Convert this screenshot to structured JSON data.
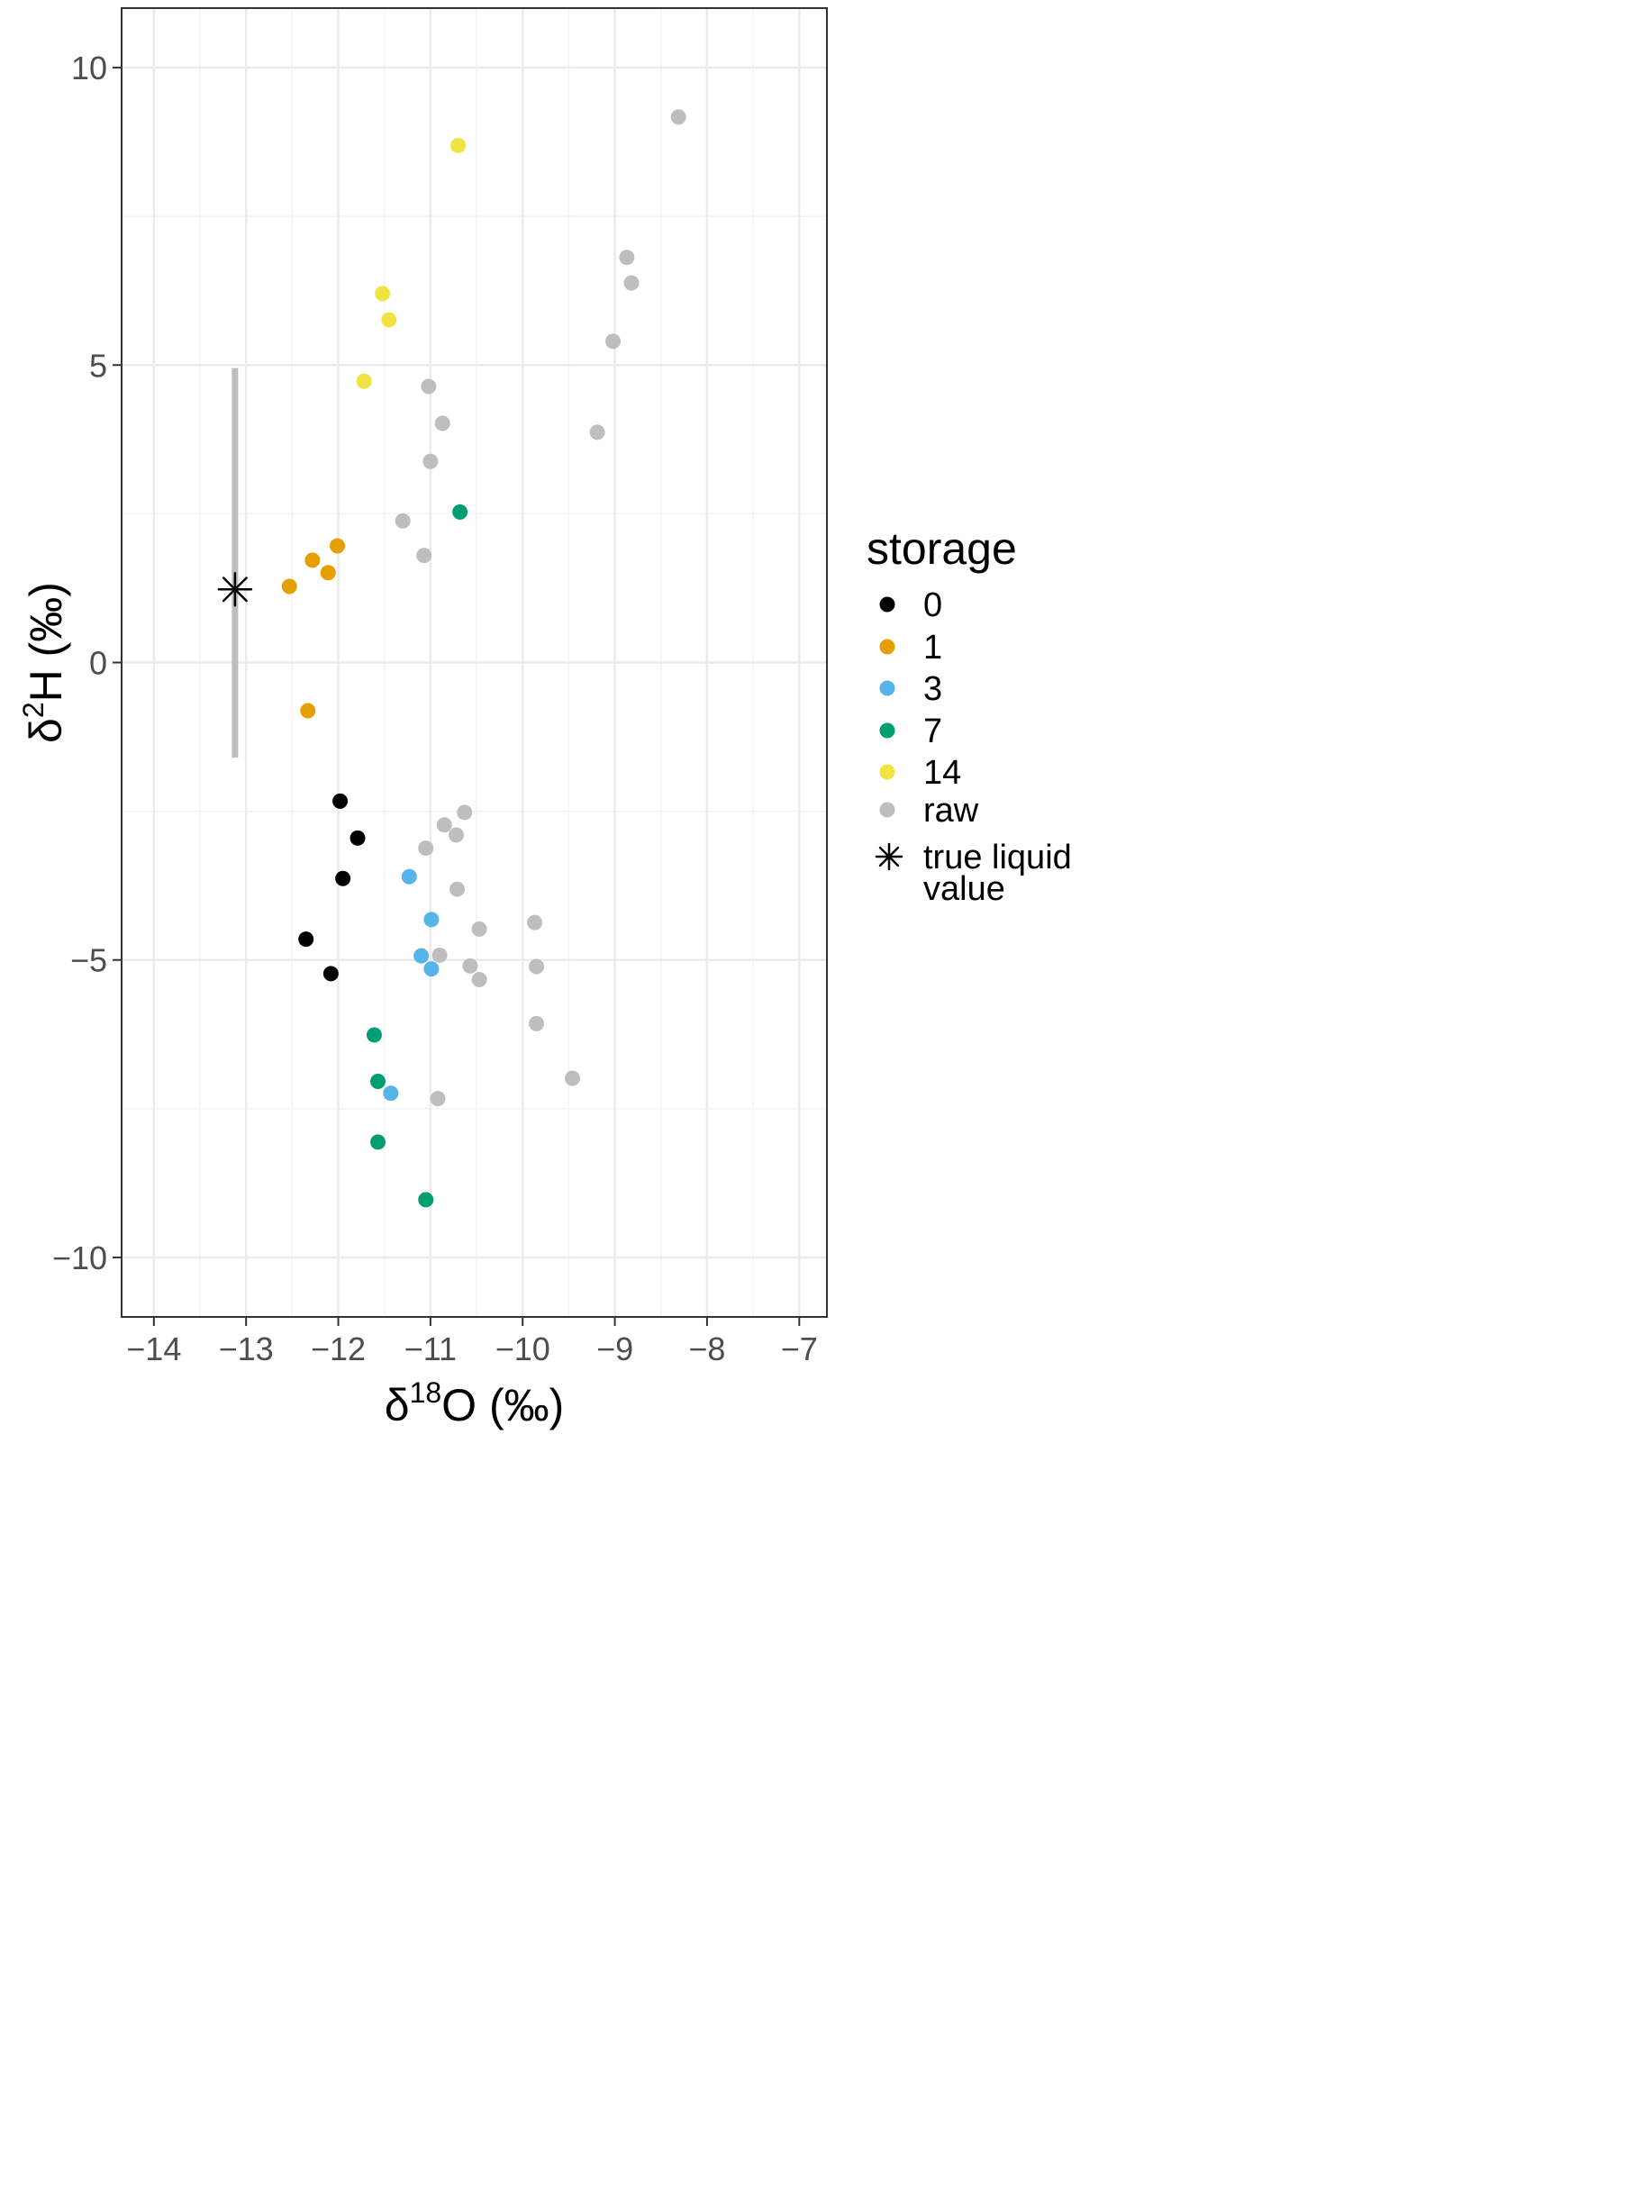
{
  "chart_data": {
    "type": "scatter",
    "xlabel": {
      "prefix": "δ",
      "sup": "18",
      "main": "O (‰)"
    },
    "ylabel": {
      "prefix": "δ",
      "sup": "2",
      "main": "H (‰)"
    },
    "xlim": [
      -14.35,
      -6.7
    ],
    "ylim": [
      -11,
      11
    ],
    "x_ticks": [
      -14,
      -13,
      -12,
      -11,
      -10,
      -9,
      -8,
      -7
    ],
    "x_tick_labels": [
      "−14",
      "−13",
      "−12",
      "−11",
      "−10",
      "−9",
      "−8",
      "−7"
    ],
    "y_ticks": [
      -10,
      -5,
      0,
      5,
      10
    ],
    "y_tick_labels": [
      "−10",
      "−5",
      "0",
      "5",
      "10"
    ],
    "grid": true,
    "legend": {
      "title": "storage",
      "placement": "right",
      "entries": [
        {
          "label": "0",
          "color": "#000000"
        },
        {
          "label": "1",
          "color": "#E69F00"
        },
        {
          "label": "3",
          "color": "#56B4E9"
        },
        {
          "label": "7",
          "color": "#009E73"
        },
        {
          "label": "14",
          "color": "#F0E442"
        },
        {
          "label": "raw",
          "color": "#BEBEBE"
        }
      ],
      "marker_entry": {
        "label_line1": "true liquid",
        "label_line2": "value"
      }
    },
    "series": [
      {
        "name": "0",
        "color": "#000000",
        "points": [
          {
            "x": -11.98,
            "y": -2.33
          },
          {
            "x": -11.79,
            "y": -2.95
          },
          {
            "x": -11.95,
            "y": -3.63
          },
          {
            "x": -12.35,
            "y": -4.65
          },
          {
            "x": -12.08,
            "y": -5.23
          }
        ]
      },
      {
        "name": "1",
        "color": "#E69F00",
        "points": [
          {
            "x": -12.01,
            "y": 1.96
          },
          {
            "x": -12.28,
            "y": 1.72
          },
          {
            "x": -12.11,
            "y": 1.51
          },
          {
            "x": -12.53,
            "y": 1.28
          },
          {
            "x": -12.33,
            "y": -0.81
          }
        ]
      },
      {
        "name": "3",
        "color": "#56B4E9",
        "points": [
          {
            "x": -11.23,
            "y": -3.6
          },
          {
            "x": -10.99,
            "y": -4.32
          },
          {
            "x": -11.1,
            "y": -4.93
          },
          {
            "x": -10.99,
            "y": -5.15
          },
          {
            "x": -11.43,
            "y": -7.24
          }
        ]
      },
      {
        "name": "7",
        "color": "#009E73",
        "points": [
          {
            "x": -10.68,
            "y": 2.53
          },
          {
            "x": -11.61,
            "y": -6.26
          },
          {
            "x": -11.57,
            "y": -7.04
          },
          {
            "x": -11.57,
            "y": -8.06
          },
          {
            "x": -11.05,
            "y": -9.03
          }
        ]
      },
      {
        "name": "14",
        "color": "#F0E442",
        "points": [
          {
            "x": -10.7,
            "y": 8.69
          },
          {
            "x": -11.52,
            "y": 6.2
          },
          {
            "x": -11.45,
            "y": 5.76
          },
          {
            "x": -11.72,
            "y": 4.73
          }
        ]
      },
      {
        "name": "raw",
        "color": "#BEBEBE",
        "points": [
          {
            "x": -8.31,
            "y": 9.17
          },
          {
            "x": -8.87,
            "y": 6.81
          },
          {
            "x": -8.82,
            "y": 6.38
          },
          {
            "x": -9.02,
            "y": 5.4
          },
          {
            "x": -9.19,
            "y": 3.87
          },
          {
            "x": -11.02,
            "y": 4.64
          },
          {
            "x": -10.87,
            "y": 4.02
          },
          {
            "x": -11.0,
            "y": 3.38
          },
          {
            "x": -11.3,
            "y": 2.38
          },
          {
            "x": -11.07,
            "y": 1.8
          },
          {
            "x": -10.63,
            "y": -2.52
          },
          {
            "x": -10.85,
            "y": -2.73
          },
          {
            "x": -10.72,
            "y": -2.9
          },
          {
            "x": -11.05,
            "y": -3.12
          },
          {
            "x": -10.71,
            "y": -3.81
          },
          {
            "x": -9.87,
            "y": -4.37
          },
          {
            "x": -10.47,
            "y": -4.48
          },
          {
            "x": -10.9,
            "y": -4.92
          },
          {
            "x": -10.57,
            "y": -5.1
          },
          {
            "x": -9.85,
            "y": -5.11
          },
          {
            "x": -10.47,
            "y": -5.33
          },
          {
            "x": -9.85,
            "y": -6.07
          },
          {
            "x": -9.46,
            "y": -6.99
          },
          {
            "x": -10.92,
            "y": -7.33
          }
        ]
      }
    ],
    "true_value": {
      "x": -13.12,
      "y": 1.23,
      "y_range": [
        -1.6,
        4.95
      ],
      "range_color": "#BEBEBE"
    }
  }
}
